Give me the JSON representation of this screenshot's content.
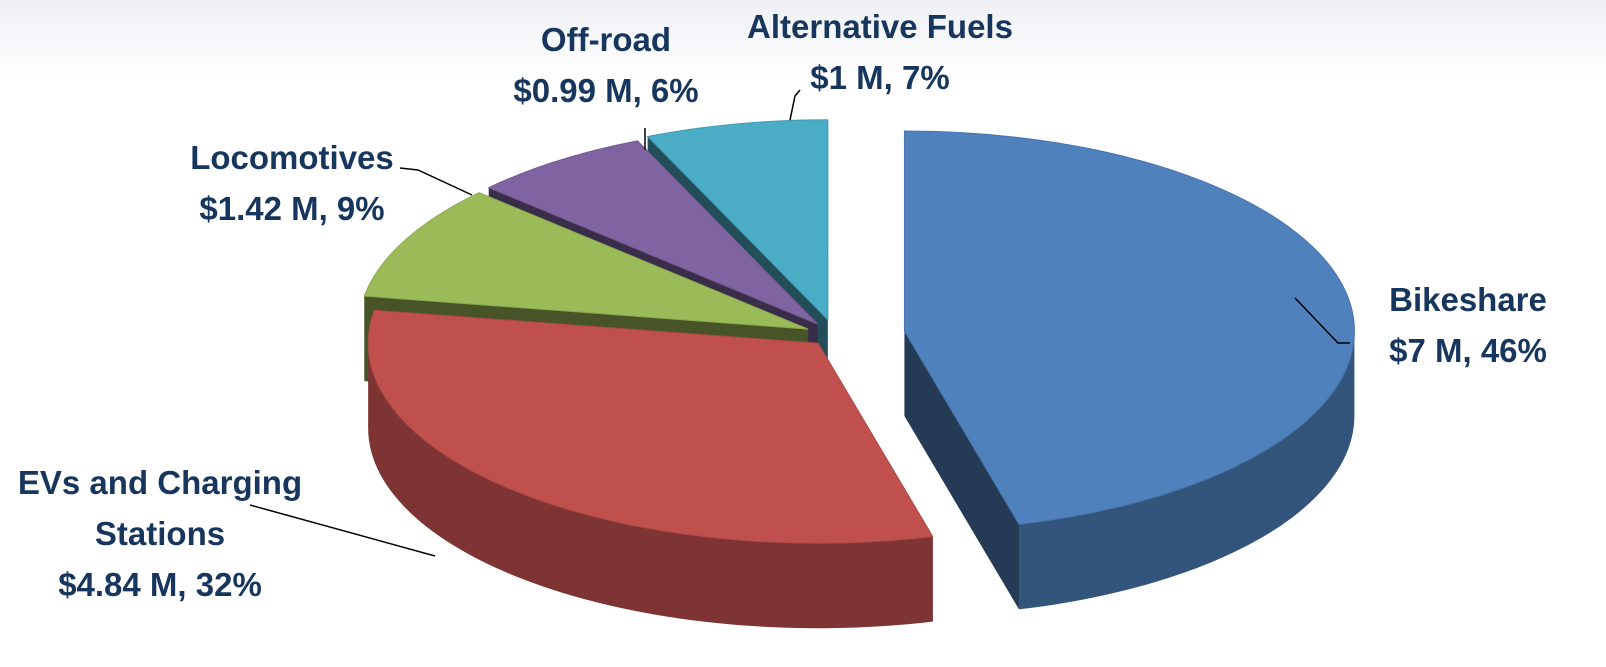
{
  "chart_data": {
    "type": "pie",
    "categories": [
      "Bikeshare",
      "EVs and Charging Stations",
      "Locomotives",
      "Off-road",
      "Alternative Fuels"
    ],
    "values": [
      7,
      4.84,
      1.42,
      0.99,
      1
    ],
    "value_labels": [
      "$7 M, 46%",
      "$4.84 M, 32%",
      "$1.42 M, 9%",
      "$0.99 M, 6%",
      "$1 M, 7%"
    ],
    "colors": [
      "#4f81bd",
      "#c0504d",
      "#9bbb59",
      "#8064a2",
      "#4bacc6"
    ]
  }
}
